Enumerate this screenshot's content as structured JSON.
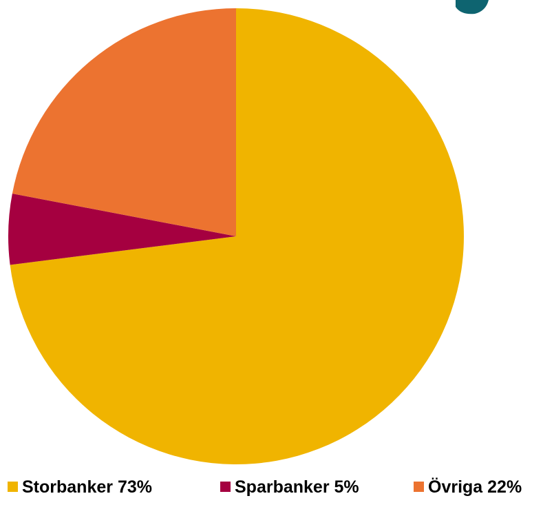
{
  "chart_data": {
    "type": "pie",
    "categories": [
      "Storbanker",
      "Sparbanker",
      "Övriga"
    ],
    "values": [
      73,
      5,
      22
    ],
    "value_labels": [
      "73%",
      "5%",
      "22%"
    ],
    "colors": [
      "#f0b400",
      "#a50040",
      "#ec7330"
    ]
  }
}
